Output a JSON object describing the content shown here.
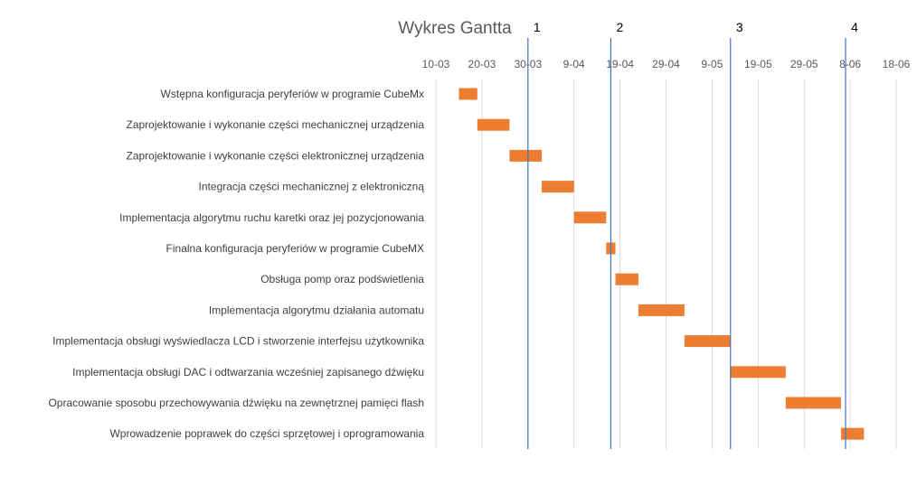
{
  "chart_data": {
    "type": "bar",
    "orientation": "horizontal-gantt",
    "title": "Wykres Gantta",
    "x_ticks": [
      "10-03",
      "20-03",
      "30-03",
      "9-04",
      "19-04",
      "29-04",
      "9-05",
      "19-05",
      "29-05",
      "8-06",
      "18-06"
    ],
    "xlim": [
      "2021-03-10",
      "2021-06-18"
    ],
    "grid": true,
    "tasks": [
      {
        "name": "Wstępna konfiguracja peryferiów w programie CubeMx",
        "start": "2021-03-15",
        "end": "2021-03-19"
      },
      {
        "name": "Zaprojektowanie i wykonanie części mechanicznej urządzenia",
        "start": "2021-03-19",
        "end": "2021-03-26"
      },
      {
        "name": "Zaprojektowanie i wykonanie części elektronicznej urządzenia",
        "start": "2021-03-26",
        "end": "2021-04-02"
      },
      {
        "name": "Integracja części mechanicznej z elektroniczną",
        "start": "2021-04-02",
        "end": "2021-04-09"
      },
      {
        "name": "Implementacja algorytmu ruchu karetki oraz jej pozycjonowania",
        "start": "2021-04-09",
        "end": "2021-04-16"
      },
      {
        "name": "Finalna konfiguracja peryferiów w programie CubeMX",
        "start": "2021-04-16",
        "end": "2021-04-18"
      },
      {
        "name": "Obsługa pomp oraz podświetlenia",
        "start": "2021-04-18",
        "end": "2021-04-23"
      },
      {
        "name": "Implementacja algorytmu działania automatu",
        "start": "2021-04-23",
        "end": "2021-05-03"
      },
      {
        "name": "Implementacja obsługi wyświedlacza LCD i stworzenie interfejsu użytkownika",
        "start": "2021-05-03",
        "end": "2021-05-13"
      },
      {
        "name": "Implementacja obsługi DAC i odtwarzania wcześniej zapisanego dźwięku",
        "start": "2021-05-13",
        "end": "2021-05-25"
      },
      {
        "name": "Opracowanie sposobu przechowywania dźwięku na zewnętrznej pamięci flash",
        "start": "2021-05-25",
        "end": "2021-06-06"
      },
      {
        "name": "Wprowadzenie poprawek do części sprzętowej i oprogramowania",
        "start": "2021-06-06",
        "end": "2021-06-11"
      }
    ],
    "milestones": [
      {
        "label": "1",
        "date": "2021-03-30"
      },
      {
        "label": "2",
        "date": "2021-04-17"
      },
      {
        "label": "3",
        "date": "2021-05-13"
      },
      {
        "label": "4",
        "date": "2021-06-07"
      }
    ],
    "colors": {
      "bar": "#ED7D31",
      "milestone_line": "#4472C4",
      "grid": "#D9D9D9",
      "title": "#595959",
      "tick_text": "#595959",
      "category_text": "#404040"
    }
  }
}
